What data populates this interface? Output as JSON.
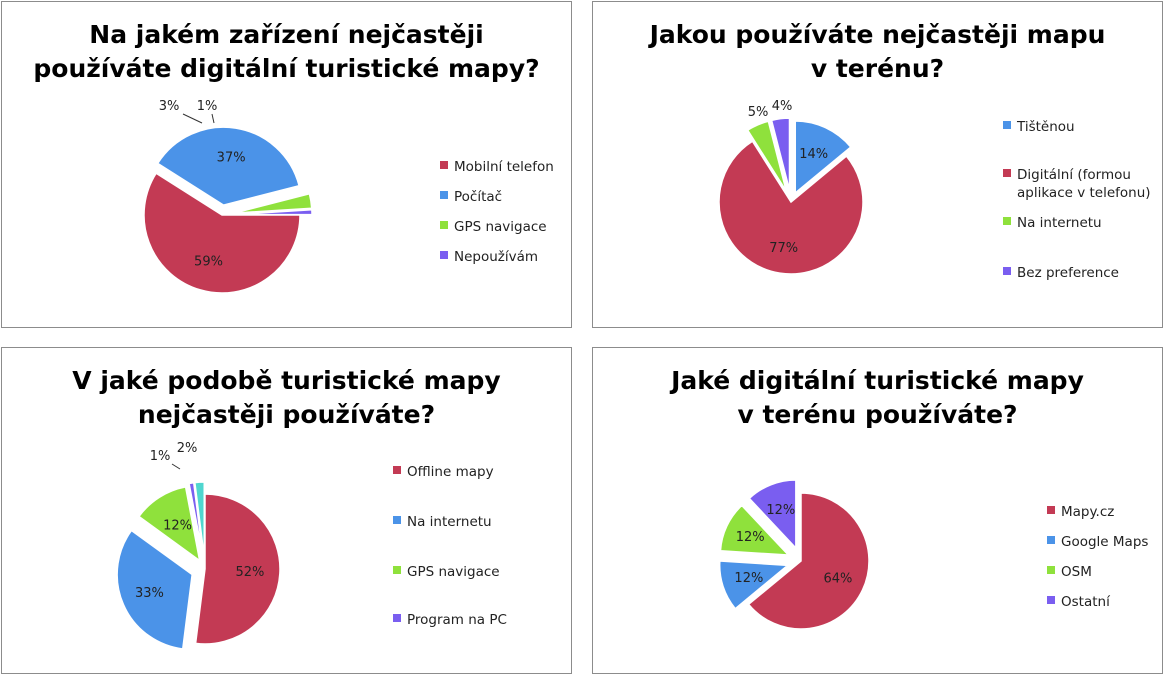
{
  "colors": {
    "red": "#c33a54",
    "blue": "#4b93e8",
    "green": "#8fe13c",
    "purple": "#7a5ef0",
    "cyan": "#4fd6cf"
  },
  "chart_data": [
    {
      "type": "pie",
      "title": [
        "Na jakém zařízení nejčastěji",
        "používáte digitální turistické mapy?"
      ],
      "legend_position": "right",
      "slices": [
        {
          "name": "Mobilní telefon",
          "value": 59,
          "label": "59%",
          "color": "#c33a54"
        },
        {
          "name": "Počítač",
          "value": 37,
          "label": "37%",
          "color": "#4b93e8"
        },
        {
          "name": "GPS navigace",
          "value": 3,
          "label": "3%",
          "color": "#8fe13c"
        },
        {
          "name": "Nepoužívám",
          "value": 1,
          "label": "1%",
          "color": "#7a5ef0"
        }
      ]
    },
    {
      "type": "pie",
      "title": [
        "Jakou používáte nejčastěji mapu",
        "v terénu?"
      ],
      "legend_position": "right",
      "slices": [
        {
          "name": "Tištěnou",
          "value": 14,
          "label": "14%",
          "color": "#4b93e8"
        },
        {
          "name": "Digitální (formou aplikace v telefonu)",
          "name_lines": [
            "Digitální (formou",
            "aplikace v telefonu)"
          ],
          "value": 77,
          "label": "77%",
          "color": "#c33a54"
        },
        {
          "name": "Na internetu",
          "value": 5,
          "label": "5%",
          "color": "#8fe13c"
        },
        {
          "name": "Bez preference",
          "value": 4,
          "label": "4%",
          "color": "#7a5ef0"
        }
      ]
    },
    {
      "type": "pie",
      "title": [
        "V jaké podobě turistické mapy",
        "nejčastěji používáte?"
      ],
      "legend_position": "right",
      "slices": [
        {
          "name": "Offline mapy",
          "value": 52,
          "label": "52%",
          "color": "#c33a54"
        },
        {
          "name": "Na internetu",
          "value": 33,
          "label": "33%",
          "color": "#4b93e8"
        },
        {
          "name": "GPS navigace",
          "value": 12,
          "label": "12%",
          "color": "#8fe13c"
        },
        {
          "name": "Program na PC",
          "value": 1,
          "label": "1%",
          "color": "#7a5ef0"
        },
        {
          "name": "",
          "value": 2,
          "label": "2%",
          "color": "#4fd6cf",
          "in_legend": false
        }
      ]
    },
    {
      "type": "pie",
      "title": [
        "Jaké digitální turistické mapy",
        "v terénu používáte?"
      ],
      "legend_position": "right",
      "slices": [
        {
          "name": "Mapy.cz",
          "value": 64,
          "label": "64%",
          "color": "#c33a54"
        },
        {
          "name": "Google Maps",
          "value": 12,
          "label": "12%",
          "color": "#4b93e8"
        },
        {
          "name": "OSM",
          "value": 12,
          "label": "12%",
          "color": "#8fe13c"
        },
        {
          "name": "Ostatní",
          "value": 12,
          "label": "12%",
          "color": "#7a5ef0"
        }
      ]
    }
  ]
}
